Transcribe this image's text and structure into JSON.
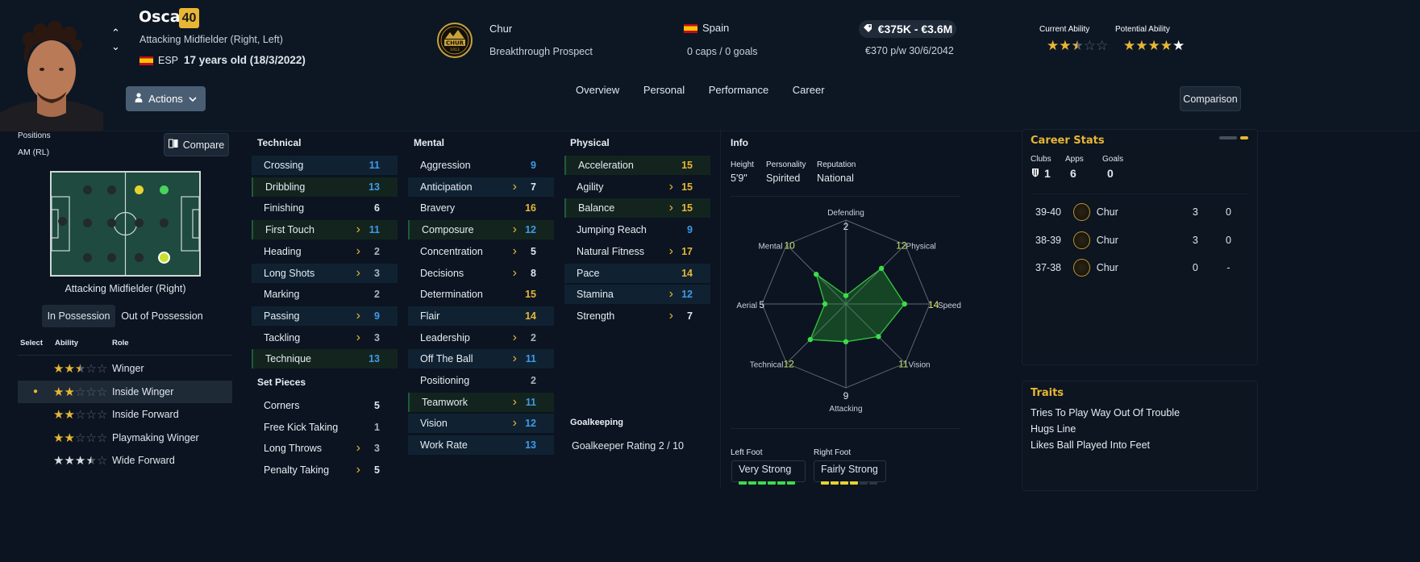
{
  "player": {
    "name": "Oscar",
    "age_badge": "40",
    "position_text": "Attacking Midfielder (Right, Left)",
    "nationality_code": "ESP",
    "age_text": "17 years old (18/3/2022)"
  },
  "club": {
    "name": "Chur",
    "badge_text": "CHUR",
    "badge_year": "1913",
    "status": "Breakthrough Prospect"
  },
  "nation": {
    "name": "Spain",
    "caps": "0 caps / 0 goals"
  },
  "value": {
    "range": "€375K - €3.6M",
    "wage": "€370 p/w 30/6/2042"
  },
  "abilities": {
    "current_label": "Current Ability",
    "potential_label": "Potential Ability",
    "current_stars": 2.5,
    "potential_stars": 5
  },
  "actions_label": "Actions",
  "tabs": [
    "Overview",
    "Personal",
    "Performance",
    "Career"
  ],
  "comparison_label": "Comparison",
  "positions": {
    "title": "Positions",
    "value": "AM (RL)",
    "compare_label": "Compare",
    "pitch_caption": "Attacking Midfielder (Right)"
  },
  "possession_tabs": {
    "in": "In Possession",
    "out": "Out of Possession"
  },
  "roles": {
    "headers": {
      "select": "Select",
      "ability": "Ability",
      "role": "Role"
    },
    "items": [
      {
        "name": "Winger",
        "stars": 2.5,
        "selected": false
      },
      {
        "name": "Inside Winger",
        "stars": 2,
        "selected": true
      },
      {
        "name": "Inside Forward",
        "stars": 2,
        "selected": false
      },
      {
        "name": "Playmaking Winger",
        "stars": 2,
        "selected": false
      },
      {
        "name": "Wide Forward",
        "stars": 3.5,
        "selected": false,
        "white": true
      }
    ]
  },
  "technical": {
    "title": "Technical",
    "items": [
      {
        "name": "Crossing",
        "value": "11",
        "color": "blue",
        "bg": "hl",
        "arrow": false
      },
      {
        "name": "Dribbling",
        "value": "13",
        "color": "blue",
        "bg": "g",
        "arrow": false
      },
      {
        "name": "Finishing",
        "value": "6",
        "color": "white",
        "bg": "",
        "arrow": false
      },
      {
        "name": "First Touch",
        "value": "11",
        "color": "blue",
        "bg": "g",
        "arrow": true
      },
      {
        "name": "Heading",
        "value": "2",
        "color": "grey",
        "bg": "",
        "arrow": true
      },
      {
        "name": "Long Shots",
        "value": "3",
        "color": "grey",
        "bg": "hl",
        "arrow": true
      },
      {
        "name": "Marking",
        "value": "2",
        "color": "grey",
        "bg": "",
        "arrow": false
      },
      {
        "name": "Passing",
        "value": "9",
        "color": "blue",
        "bg": "hl",
        "arrow": true
      },
      {
        "name": "Tackling",
        "value": "3",
        "color": "grey",
        "bg": "",
        "arrow": true
      },
      {
        "name": "Technique",
        "value": "13",
        "color": "blue",
        "bg": "g",
        "arrow": false
      }
    ]
  },
  "set_pieces": {
    "title": "Set Pieces",
    "items": [
      {
        "name": "Corners",
        "value": "5",
        "color": "white",
        "arrow": false
      },
      {
        "name": "Free Kick Taking",
        "value": "1",
        "color": "grey",
        "arrow": false
      },
      {
        "name": "Long Throws",
        "value": "3",
        "color": "grey",
        "arrow": true
      },
      {
        "name": "Penalty Taking",
        "value": "5",
        "color": "white",
        "arrow": true
      }
    ]
  },
  "mental": {
    "title": "Mental",
    "items": [
      {
        "name": "Aggression",
        "value": "9",
        "color": "blue",
        "bg": "",
        "arrow": false
      },
      {
        "name": "Anticipation",
        "value": "7",
        "color": "white",
        "bg": "hl",
        "arrow": true
      },
      {
        "name": "Bravery",
        "value": "16",
        "color": "yellow",
        "bg": "",
        "arrow": false
      },
      {
        "name": "Composure",
        "value": "12",
        "color": "blue",
        "bg": "g",
        "arrow": true
      },
      {
        "name": "Concentration",
        "value": "5",
        "color": "white",
        "bg": "",
        "arrow": true
      },
      {
        "name": "Decisions",
        "value": "8",
        "color": "white",
        "bg": "",
        "arrow": true
      },
      {
        "name": "Determination",
        "value": "15",
        "color": "yellow",
        "bg": "",
        "arrow": false
      },
      {
        "name": "Flair",
        "value": "14",
        "color": "yellow",
        "bg": "hl",
        "arrow": false
      },
      {
        "name": "Leadership",
        "value": "2",
        "color": "grey",
        "bg": "",
        "arrow": true
      },
      {
        "name": "Off The Ball",
        "value": "11",
        "color": "blue",
        "bg": "hl",
        "arrow": true
      },
      {
        "name": "Positioning",
        "value": "2",
        "color": "grey",
        "bg": "",
        "arrow": false
      },
      {
        "name": "Teamwork",
        "value": "11",
        "color": "blue",
        "bg": "g",
        "arrow": true
      },
      {
        "name": "Vision",
        "value": "12",
        "color": "blue",
        "bg": "hl",
        "arrow": true
      },
      {
        "name": "Work Rate",
        "value": "13",
        "color": "blue",
        "bg": "hl",
        "arrow": false
      }
    ]
  },
  "physical": {
    "title": "Physical",
    "items": [
      {
        "name": "Acceleration",
        "value": "15",
        "color": "yellow",
        "bg": "g",
        "arrow": false
      },
      {
        "name": "Agility",
        "value": "15",
        "color": "yellow",
        "bg": "",
        "arrow": true
      },
      {
        "name": "Balance",
        "value": "15",
        "color": "yellow",
        "bg": "g",
        "arrow": true
      },
      {
        "name": "Jumping Reach",
        "value": "9",
        "color": "blue",
        "bg": "",
        "arrow": false
      },
      {
        "name": "Natural Fitness",
        "value": "17",
        "color": "yellow",
        "bg": "",
        "arrow": true
      },
      {
        "name": "Pace",
        "value": "14",
        "color": "yellow",
        "bg": "hl",
        "arrow": false
      },
      {
        "name": "Stamina",
        "value": "12",
        "color": "blue",
        "bg": "hl",
        "arrow": true
      },
      {
        "name": "Strength",
        "value": "7",
        "color": "white",
        "bg": "",
        "arrow": true
      }
    ]
  },
  "goalkeeping": {
    "title": "Goalkeeping",
    "rating": "Goalkeeper Rating 2 / 10"
  },
  "info": {
    "title": "Info",
    "height_label": "Height",
    "height": "5'9\"",
    "personality_label": "Personality",
    "personality": "Spirited",
    "reputation_label": "Reputation",
    "reputation": "National"
  },
  "radar": {
    "axes": [
      {
        "label": "Defending",
        "value": "2"
      },
      {
        "label": "Physical",
        "value": "12"
      },
      {
        "label": "Speed",
        "value": "14"
      },
      {
        "label": "Vision",
        "value": "11"
      },
      {
        "label": "Attacking",
        "value": "9"
      },
      {
        "label": "Technical",
        "value": "12"
      },
      {
        "label": "Aerial",
        "value": "5"
      },
      {
        "label": "Mental",
        "value": "10"
      }
    ]
  },
  "feet": {
    "left_label": "Left Foot",
    "left_value": "Very Strong",
    "left_level": 6,
    "right_label": "Right Foot",
    "right_value": "Fairly Strong",
    "right_level": 4
  },
  "career_stats": {
    "title": "Career Stats",
    "clubs_label": "Clubs",
    "clubs": "1",
    "apps_label": "Apps",
    "apps": "6",
    "goals_label": "Goals",
    "goals": "0",
    "rows": [
      {
        "season": "39-40",
        "club": "Chur",
        "apps": "3",
        "goals": "0"
      },
      {
        "season": "38-39",
        "club": "Chur",
        "apps": "3",
        "goals": "0"
      },
      {
        "season": "37-38",
        "club": "Chur",
        "apps": "0",
        "goals": "-"
      }
    ]
  },
  "traits": {
    "title": "Traits",
    "items": [
      "Tries To Play Way Out Of Trouble",
      "Hugs Line",
      "Likes Ball Played Into Feet"
    ]
  },
  "colors": {
    "accent": "#e8b634",
    "blue": "#3e9be8",
    "green": "#3ddc4a",
    "background": "#0b1420"
  }
}
